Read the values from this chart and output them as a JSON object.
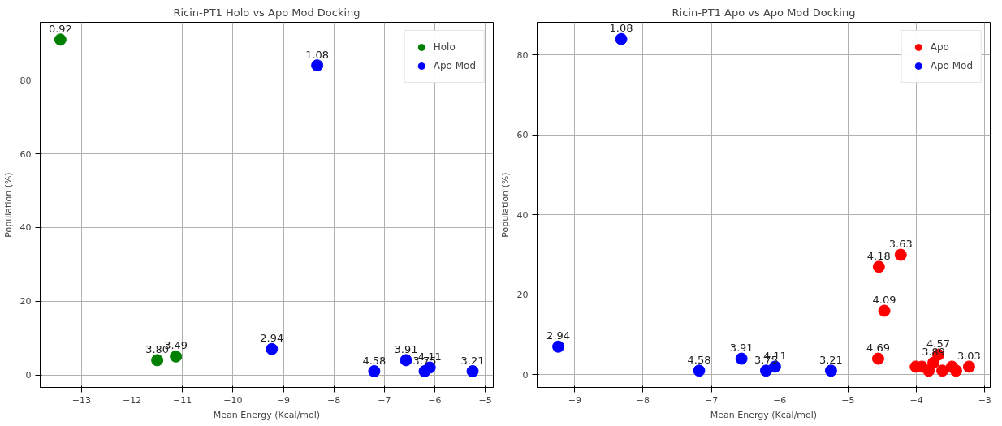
{
  "chart_data": [
    {
      "type": "scatter",
      "title": "Ricin-PT1 Holo vs Apo Mod Docking",
      "xlabel": "Mean Energy (Kcal/mol)",
      "ylabel": "Population (%)",
      "xlim": [
        -13.82,
        -4.84
      ],
      "ylim": [
        -3.4,
        95.7
      ],
      "xticks": [
        {
          "value": -13,
          "label": "−13"
        },
        {
          "value": -12,
          "label": "−12"
        },
        {
          "value": -11,
          "label": "−11"
        },
        {
          "value": -10,
          "label": "−10"
        },
        {
          "value": -9,
          "label": "−9"
        },
        {
          "value": -8,
          "label": "−8"
        },
        {
          "value": -7,
          "label": "−7"
        },
        {
          "value": -6,
          "label": "−6"
        },
        {
          "value": -5,
          "label": "−5"
        }
      ],
      "yticks": [
        0,
        20,
        40,
        60,
        80
      ],
      "grid": true,
      "legend": "top right",
      "marker": "circle",
      "series": [
        {
          "name": "Holo",
          "color": "#008000",
          "x": [
            -13.42,
            -11.5,
            -11.13
          ],
          "values": [
            91,
            4,
            5
          ]
        },
        {
          "name": "Apo Mod",
          "color": "#0000ff",
          "x": [
            -8.33,
            -9.23,
            -7.2,
            -6.57,
            -6.2,
            -6.1,
            -5.25
          ],
          "values": [
            84,
            7,
            1,
            4,
            1,
            2,
            1
          ]
        }
      ],
      "annotations": [
        {
          "text": "0.92",
          "x": -13.42,
          "y": 91
        },
        {
          "text": "3.80",
          "x": -11.5,
          "y": 4
        },
        {
          "text": "3.49",
          "x": -11.13,
          "y": 5
        },
        {
          "text": "1.08",
          "x": -8.33,
          "y": 84
        },
        {
          "text": "2.94",
          "x": -9.23,
          "y": 7
        },
        {
          "text": "4.58",
          "x": -7.2,
          "y": 1
        },
        {
          "text": "3.91",
          "x": -6.57,
          "y": 4
        },
        {
          "text": "3.75",
          "x": -6.2,
          "y": 1
        },
        {
          "text": "4.11",
          "x": -6.1,
          "y": 2
        },
        {
          "text": "3.21",
          "x": -5.25,
          "y": 1
        }
      ]
    },
    {
      "type": "scatter",
      "title": "Ricin-PT1 Apo vs Apo Mod Docking",
      "xlabel": "Mean Energy (Kcal/mol)",
      "ylabel": "Population (%)",
      "xlim": [
        -9.55,
        -2.92
      ],
      "ylim": [
        -3.2,
        88.2
      ],
      "xticks": [
        {
          "value": -9,
          "label": "−9"
        },
        {
          "value": -8,
          "label": "−8"
        },
        {
          "value": -7,
          "label": "−7"
        },
        {
          "value": -6,
          "label": "−6"
        },
        {
          "value": -5,
          "label": "−5"
        },
        {
          "value": -4,
          "label": "−4"
        },
        {
          "value": -3,
          "label": "−3"
        }
      ],
      "yticks": [
        0,
        20,
        40,
        60,
        80
      ],
      "grid": true,
      "legend": "top right",
      "marker": "circle",
      "series": [
        {
          "name": "Apo",
          "color": "#ff0000",
          "x": [
            -4.55,
            -4.23,
            -4.47,
            -4.56,
            -4.01,
            -3.92,
            -3.82,
            -3.75,
            -3.68,
            -3.62,
            -3.48,
            -3.42,
            -3.23
          ],
          "values": [
            27,
            30,
            16,
            4,
            2,
            2,
            1,
            3,
            5,
            1,
            2,
            1,
            2
          ]
        },
        {
          "name": "Apo Mod",
          "color": "#0000ff",
          "x": [
            -8.32,
            -9.24,
            -7.18,
            -6.56,
            -6.2,
            -6.07,
            -5.25
          ],
          "values": [
            84,
            7,
            1,
            4,
            1,
            2,
            1
          ]
        }
      ],
      "annotations": [
        {
          "text": "4.18",
          "x": -4.55,
          "y": 27
        },
        {
          "text": "3.63",
          "x": -4.23,
          "y": 30
        },
        {
          "text": "4.09",
          "x": -4.47,
          "y": 16
        },
        {
          "text": "4.69",
          "x": -4.56,
          "y": 4
        },
        {
          "text": "3.89",
          "x": -3.75,
          "y": 3
        },
        {
          "text": "4.57",
          "x": -3.68,
          "y": 5
        },
        {
          "text": "3.03",
          "x": -3.23,
          "y": 2
        },
        {
          "text": "1.08",
          "x": -8.32,
          "y": 84
        },
        {
          "text": "2.94",
          "x": -9.24,
          "y": 7
        },
        {
          "text": "4.58",
          "x": -7.18,
          "y": 1
        },
        {
          "text": "3.91",
          "x": -6.56,
          "y": 4
        },
        {
          "text": "3.75",
          "x": -6.2,
          "y": 1
        },
        {
          "text": "4.11",
          "x": -6.07,
          "y": 2
        },
        {
          "text": "3.21",
          "x": -5.25,
          "y": 1
        }
      ]
    }
  ]
}
